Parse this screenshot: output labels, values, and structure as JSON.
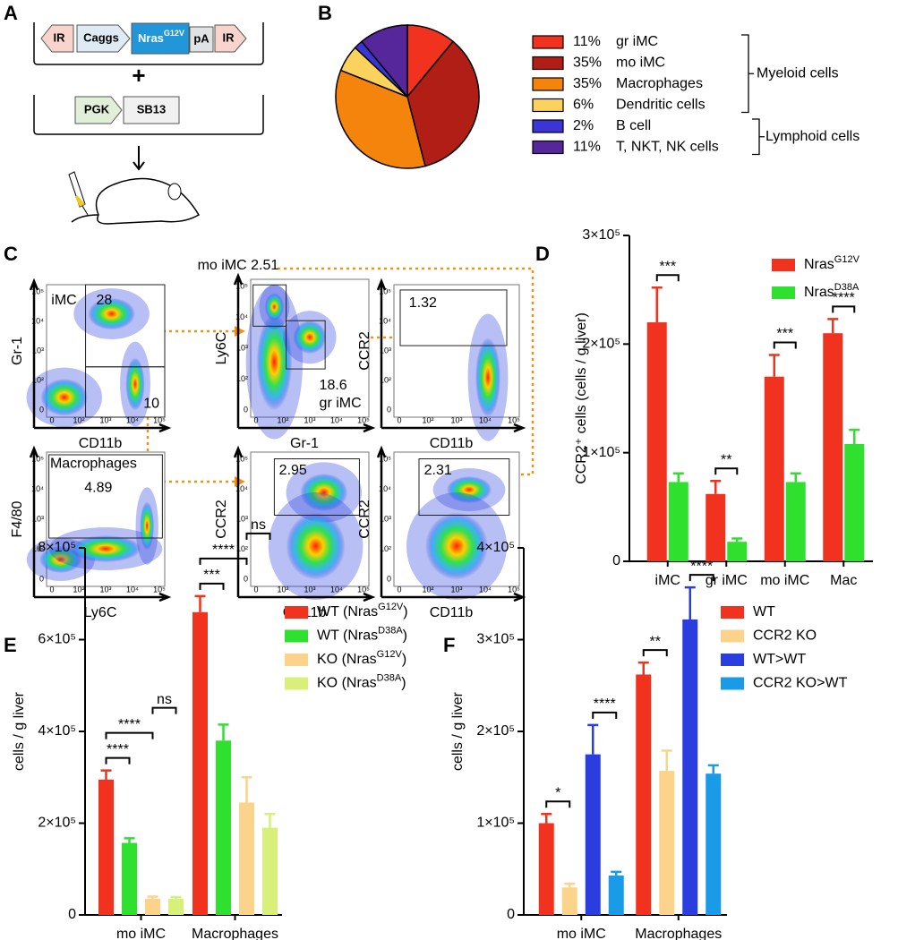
{
  "panel_labels": [
    "A",
    "B",
    "C",
    "D",
    "E",
    "F"
  ],
  "construct": {
    "ir_left": "IR",
    "promoter": "Caggs",
    "gene": "Nras",
    "gene_superscript": "G12V",
    "polya": "pA",
    "ir_right": "IR",
    "plus": "+",
    "promoter2": "PGK",
    "transposase": "SB13"
  },
  "flow": {
    "tick_labels": [
      "0",
      "10²",
      "10³",
      "10⁴",
      "10⁵"
    ],
    "plots": [
      {
        "y_label": "Gr-1",
        "x_label": "CD11b",
        "gates": [
          "iMC",
          "28",
          "10"
        ]
      },
      {
        "y_label": "Ly6C",
        "x_label": "Gr-1",
        "gates": [
          "mo iMC 2.51",
          "18.6",
          "gr iMC"
        ]
      },
      {
        "y_label": "CCR2",
        "x_label": "CD11b",
        "gates": [
          "1.32"
        ]
      },
      {
        "y_label": "F4/80",
        "x_label": "Ly6C",
        "gates": [
          "Macrophages",
          "4.89"
        ]
      },
      {
        "y_label": "CCR2",
        "x_label": "CD11b",
        "gates": [
          "2.95"
        ]
      },
      {
        "y_label": "CCR2",
        "x_label": "CD11b",
        "gates": [
          "2.31"
        ]
      }
    ]
  },
  "chart_data": [
    {
      "type": "pie",
      "categories": [
        "gr iMC",
        "mo iMC",
        "Macrophages",
        "Dendritic cells",
        "B cell",
        "T, NKT, NK cells"
      ],
      "values": [
        11,
        35,
        35,
        6,
        2,
        11
      ],
      "value_labels": [
        "11%",
        "35%",
        "35%",
        "6%",
        "2%",
        "11%"
      ],
      "colors": [
        "#f0321e",
        "#b01e16",
        "#f5840c",
        "#fbd35c",
        "#3b35d8",
        "#55279a"
      ],
      "groups": [
        "Myeloid cells",
        "Lymphoid cells"
      ]
    },
    {
      "type": "bar",
      "y_label": "CCR2⁺ cells (cells / g liver)",
      "categories": [
        "iMC",
        "gr iMC",
        "mo iMC",
        "Mac"
      ],
      "series": [
        {
          "name": "Nras",
          "name_superscript": "G12V",
          "color": "#f0321e",
          "values": [
            220000,
            62000,
            170000,
            210000
          ],
          "errors": [
            32000,
            12000,
            20000,
            13000
          ]
        },
        {
          "name": "Nras",
          "name_superscript": "D38A",
          "color": "#2fe02f",
          "values": [
            73000,
            18000,
            73000,
            108000
          ],
          "errors": [
            8000,
            3000,
            8000,
            13000
          ]
        }
      ],
      "ylim": [
        0,
        300000
      ],
      "yticks": [
        0,
        {
          "value": 100000,
          "label": "1×10⁵"
        },
        {
          "value": 200000,
          "label": "2×10⁵"
        },
        {
          "value": 300000,
          "label": "3×10⁵"
        }
      ],
      "significance": [
        [
          "***"
        ],
        [
          "**"
        ],
        [
          "***"
        ],
        [
          "****"
        ]
      ]
    },
    {
      "type": "bar",
      "y_label": "cells / g liver",
      "categories": [
        "mo iMC",
        "Macrophages"
      ],
      "series": [
        {
          "name": "WT (Nras",
          "name_superscript": "G12V",
          "name_suffix": ")",
          "color": "#f0321e",
          "values": [
            295000,
            660000
          ],
          "errors": [
            20000,
            35000
          ]
        },
        {
          "name": "WT (Nras",
          "name_superscript": "D38A",
          "name_suffix": ")",
          "color": "#2fe02f",
          "values": [
            157000,
            380000
          ],
          "errors": [
            10000,
            35000
          ]
        },
        {
          "name": "KO (Nras",
          "name_superscript": "G12V",
          "name_suffix": ")",
          "color": "#fbd38a",
          "values": [
            35000,
            245000
          ],
          "errors": [
            5000,
            55000
          ]
        },
        {
          "name": "KO (Nras",
          "name_superscript": "D38A",
          "name_suffix": ")",
          "color": "#d8f07a",
          "values": [
            35000,
            190000
          ],
          "errors": [
            4000,
            30000
          ]
        }
      ],
      "ylim": [
        0,
        800000
      ],
      "yticks": [
        0,
        {
          "value": 200000,
          "label": "2×10⁵"
        },
        {
          "value": 400000,
          "label": "4×10⁵"
        },
        {
          "value": 600000,
          "label": "6×10⁵"
        },
        {
          "value": 800000,
          "label": "8×10⁵"
        }
      ],
      "significance": [
        [
          "****",
          "****",
          "ns"
        ],
        [
          "***",
          "****",
          "ns"
        ]
      ]
    },
    {
      "type": "bar",
      "y_label": "cells / g liver",
      "categories": [
        "mo iMC",
        "Macrophages"
      ],
      "series": [
        {
          "name": "WT",
          "color": "#f0321e",
          "values": [
            100000,
            262000
          ],
          "errors": [
            10000,
            13000
          ]
        },
        {
          "name": "CCR2 KO",
          "color": "#fbd38a",
          "values": [
            30000,
            157000
          ],
          "errors": [
            4000,
            22000
          ]
        },
        {
          "name": "WT>WT",
          "color": "#2a3ee0",
          "values": [
            175000,
            322000
          ],
          "errors": [
            32000,
            35000
          ]
        },
        {
          "name": "CCR2 KO>WT",
          "color": "#1a9be8",
          "values": [
            43000,
            154000
          ],
          "errors": [
            4000,
            9000
          ]
        }
      ],
      "ylim": [
        0,
        400000
      ],
      "yticks": [
        0,
        {
          "value": 100000,
          "label": "1×10⁵"
        },
        {
          "value": 200000,
          "label": "2×10⁵"
        },
        {
          "value": 300000,
          "label": "3×10⁵"
        },
        {
          "value": 400000,
          "label": "4×10⁵"
        }
      ],
      "significance": [
        [
          "*",
          "****"
        ],
        [
          "**",
          "****"
        ]
      ]
    }
  ]
}
